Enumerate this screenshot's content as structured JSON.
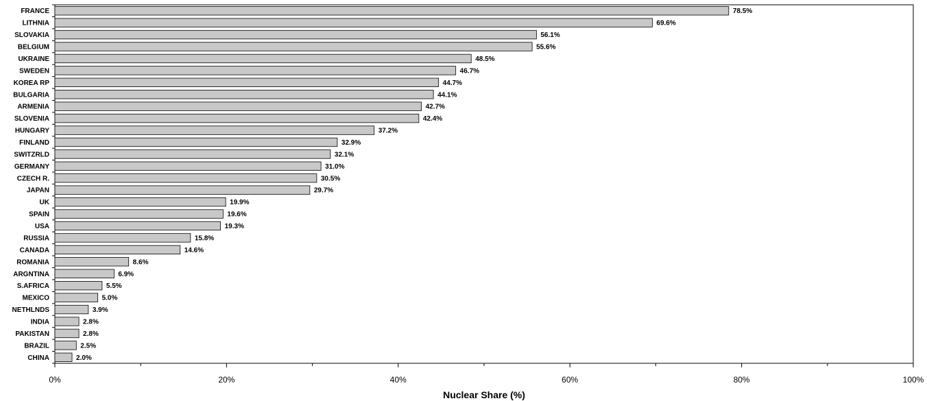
{
  "chart_data": {
    "type": "bar",
    "orientation": "horizontal",
    "categories": [
      "FRANCE",
      "LITHNIA",
      "SLOVAKIA",
      "BELGIUM",
      "UKRAINE",
      "SWEDEN",
      "KOREA RP",
      "BULGARIA",
      "ARMENIA",
      "SLOVENIA",
      "HUNGARY",
      "FINLAND",
      "SWITZRLD",
      "GERMANY",
      "CZECH R.",
      "JAPAN",
      "UK",
      "SPAIN",
      "USA",
      "RUSSIA",
      "CANADA",
      "ROMANIA",
      "ARGNTINA",
      "S.AFRICA",
      "MEXICO",
      "NETHLNDS",
      "INDIA",
      "PAKISTAN",
      "BRAZIL",
      "CHINA"
    ],
    "values": [
      78.5,
      69.6,
      56.1,
      55.6,
      48.5,
      46.7,
      44.7,
      44.1,
      42.7,
      42.4,
      37.2,
      32.9,
      32.1,
      31.0,
      30.5,
      29.7,
      19.9,
      19.6,
      19.3,
      15.8,
      14.6,
      8.6,
      6.9,
      5.5,
      5.0,
      3.9,
      2.8,
      2.8,
      2.5,
      2.0
    ],
    "value_labels": [
      "78.5%",
      "69.6%",
      "56.1%",
      "55.6%",
      "48.5%",
      "46.7%",
      "44.7%",
      "44.1%",
      "42.7%",
      "42.4%",
      "37.2%",
      "32.9%",
      "32.1%",
      "31.0%",
      "30.5%",
      "29.7%",
      "19.9%",
      "19.6%",
      "19.3%",
      "15.8%",
      "14.6%",
      "8.6%",
      "6.9%",
      "5.5%",
      "5.0%",
      "3.9%",
      "2.8%",
      "2.8%",
      "2.5%",
      "2.0%"
    ],
    "xlabel": "Nuclear Share (%)",
    "xlim": [
      0,
      100
    ],
    "x_ticks": [
      0,
      20,
      40,
      60,
      80,
      100
    ],
    "x_tick_labels": [
      "0%",
      "20%",
      "40%",
      "60%",
      "80%",
      "100%"
    ],
    "grid": false,
    "bar_color": "#c8c8c8",
    "bar_edge_color": "#000000"
  }
}
